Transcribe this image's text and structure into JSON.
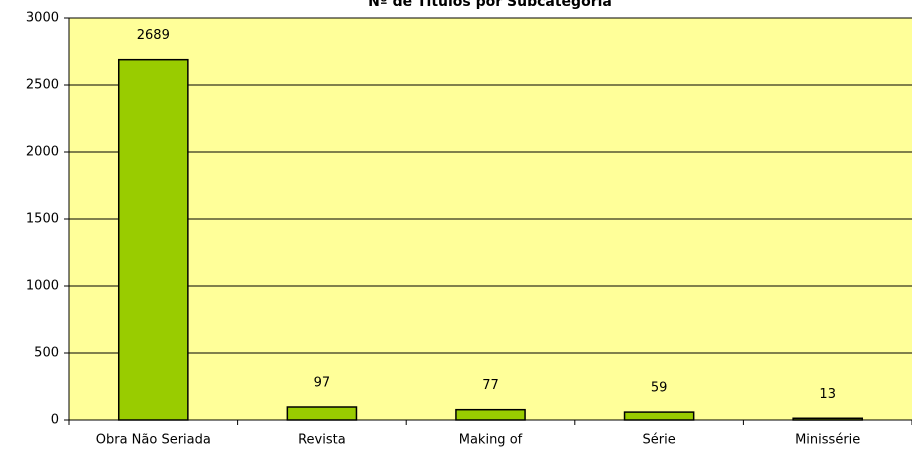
{
  "chart_data": {
    "type": "bar",
    "title": "Nº de Títulos por Subcategoria",
    "categories": [
      "Obra Não Seriada",
      "Revista",
      "Making of",
      "Série",
      "Minissérie"
    ],
    "values": [
      2689,
      97,
      77,
      59,
      13
    ],
    "color": "#99cc00",
    "ylim": [
      0,
      3000
    ],
    "yticks": [
      0,
      500,
      1000,
      1500,
      2000,
      2500,
      3000
    ],
    "grid": true
  }
}
